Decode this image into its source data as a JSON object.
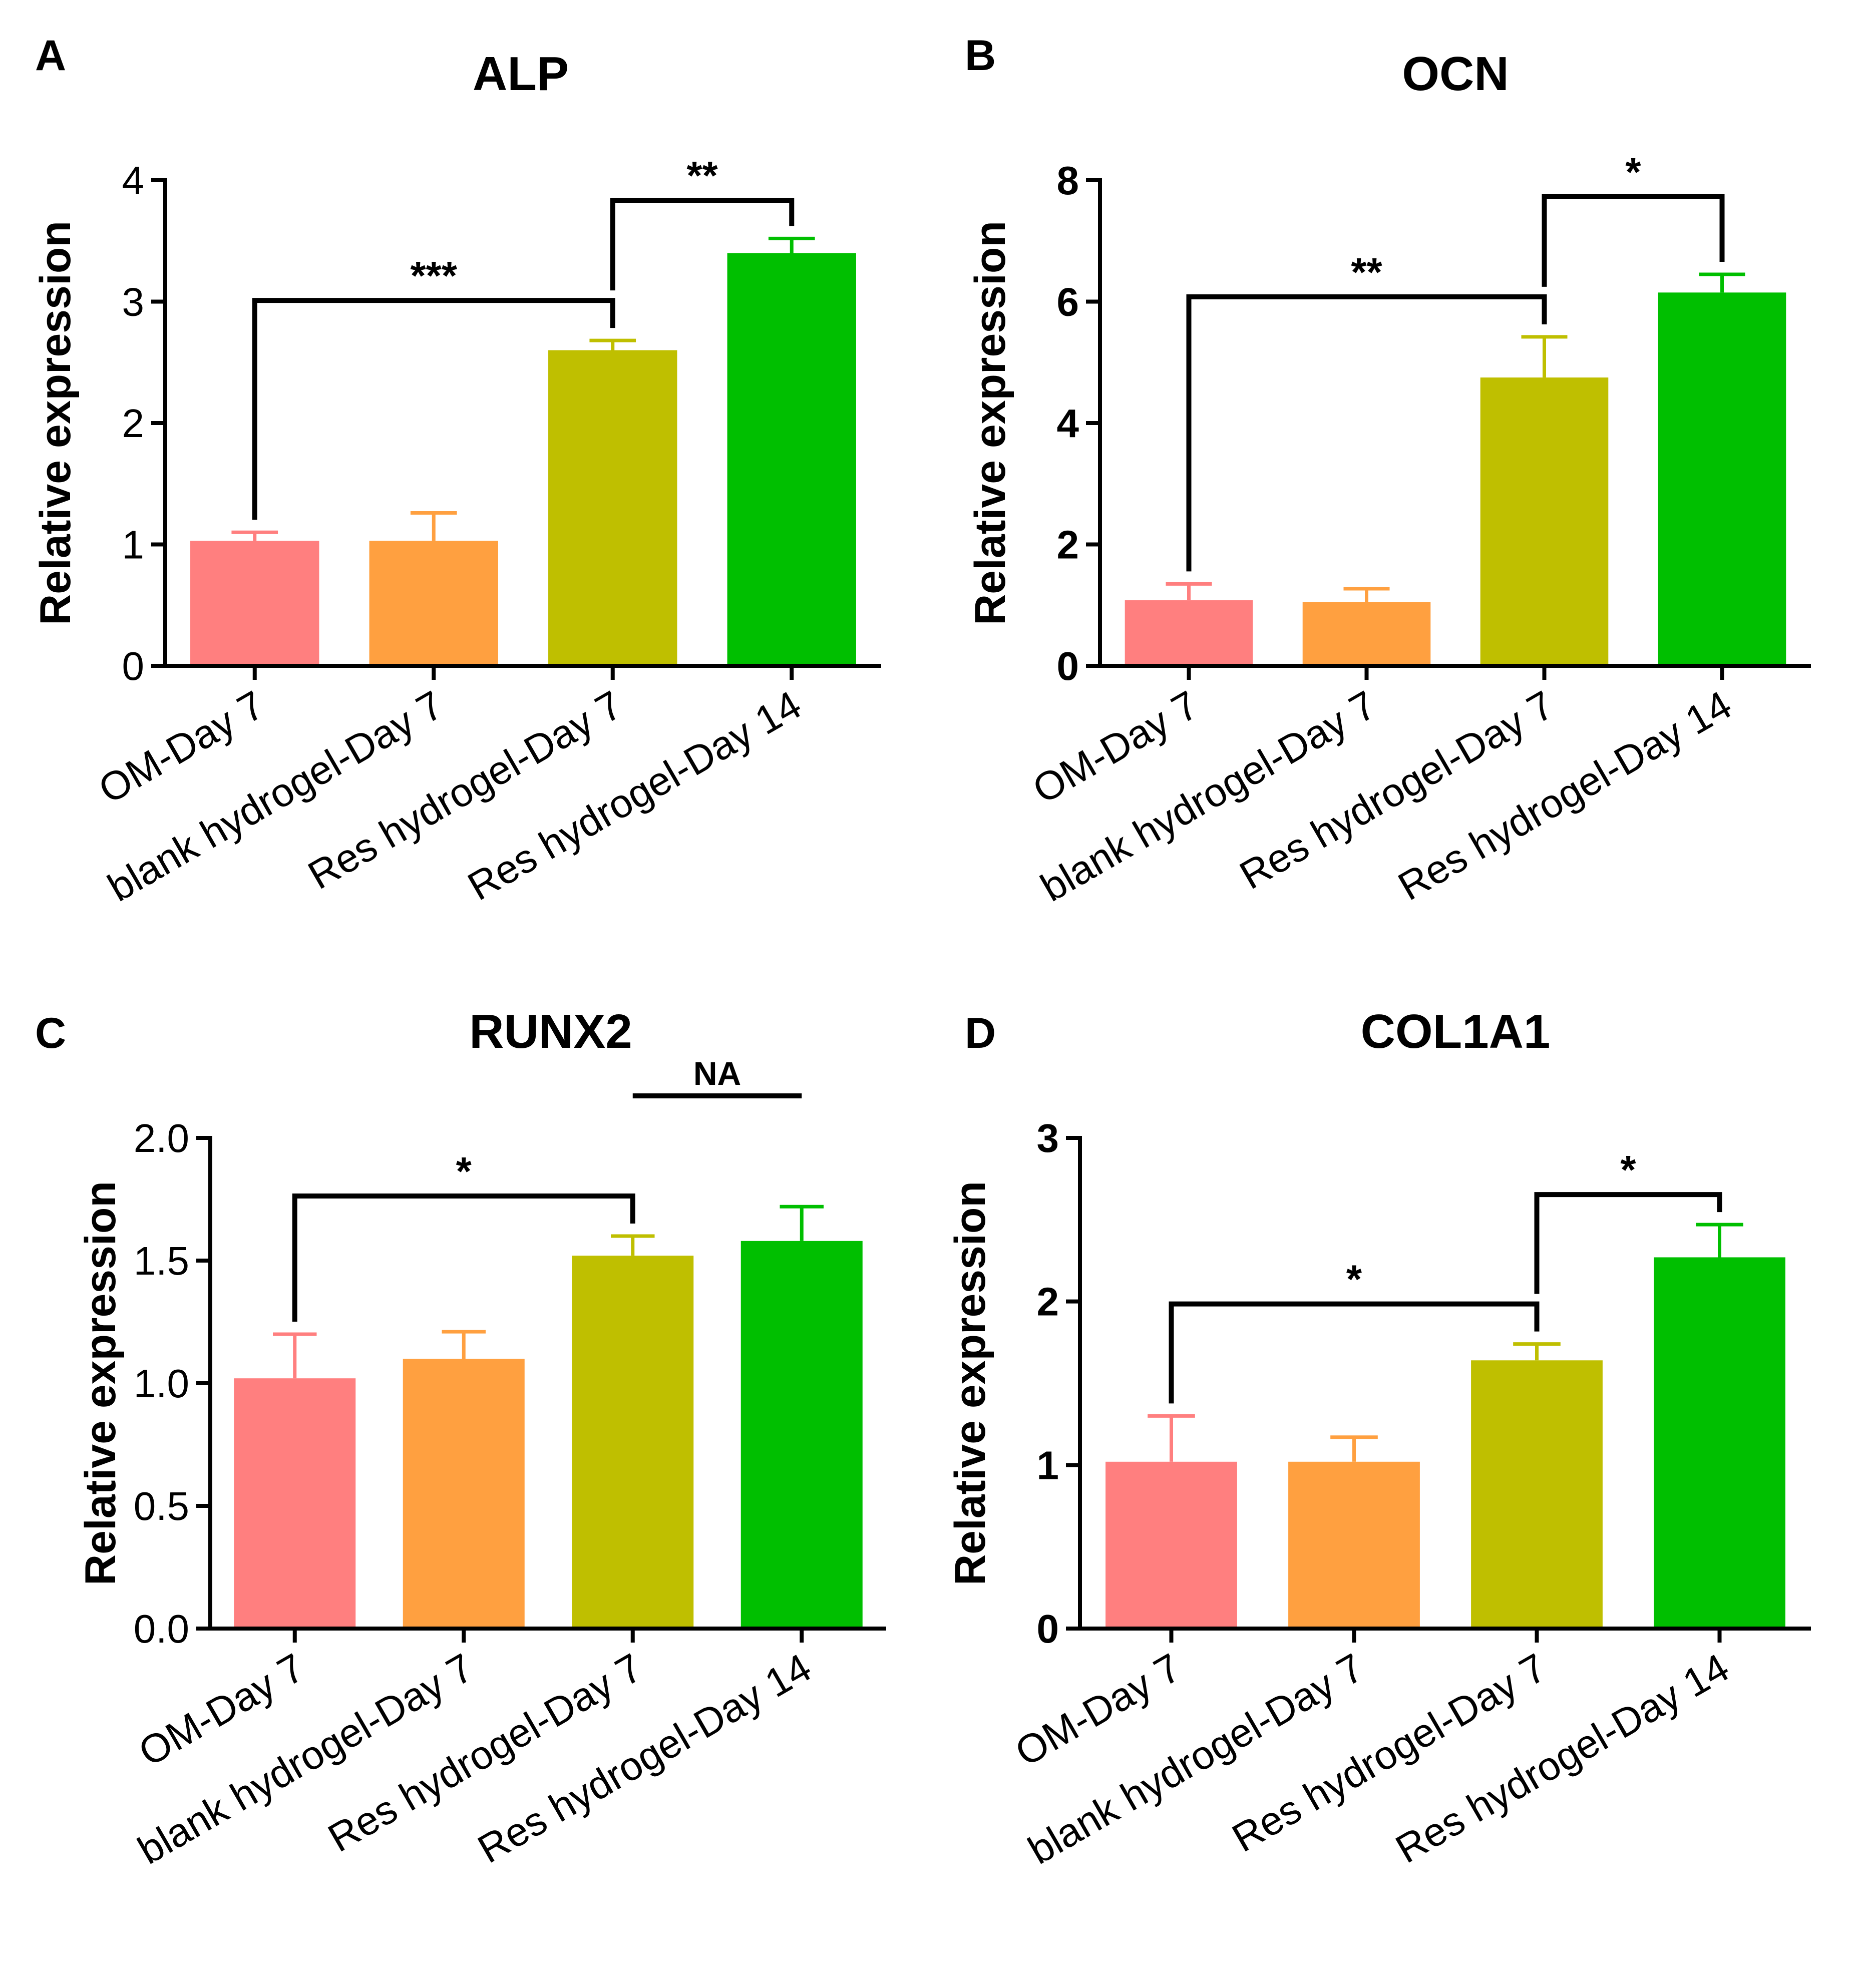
{
  "chart_data": [
    {
      "panel_label": "A",
      "type": "bar",
      "title": "ALP",
      "ylabel": "Relative expression",
      "ylim": [
        0,
        4
      ],
      "yticks": [
        "0",
        "1",
        "2",
        "3",
        "4"
      ],
      "categories": [
        "OM-Day 7",
        "blank hydrogel-Day 7",
        "Res hydrogel-Day 7",
        "Res hydrogel-Day 14"
      ],
      "values": [
        1.03,
        1.03,
        2.6,
        3.4
      ],
      "errors": [
        0.07,
        0.23,
        0.08,
        0.12
      ],
      "colors": [
        "#ff7f7f",
        "#ffa040",
        "#bfbf00",
        "#00bf00"
      ],
      "significance": [
        {
          "from": 0,
          "to": 2,
          "label": "***"
        },
        {
          "from": 2,
          "to": 3,
          "label": "**"
        }
      ]
    },
    {
      "panel_label": "B",
      "type": "bar",
      "title": "OCN",
      "ylabel": "Relative expression",
      "ylim": [
        0,
        8
      ],
      "yticks": [
        "0",
        "2",
        "4",
        "6",
        "8"
      ],
      "categories": [
        "OM-Day 7",
        "blank hydrogel-Day 7",
        "Res hydrogel-Day 7",
        "Res hydrogel-Day 14"
      ],
      "values": [
        1.08,
        1.05,
        4.75,
        6.15
      ],
      "errors": [
        0.27,
        0.22,
        0.67,
        0.3
      ],
      "colors": [
        "#ff7f7f",
        "#ffa040",
        "#bfbf00",
        "#00bf00"
      ],
      "significance": [
        {
          "from": 0,
          "to": 2,
          "label": "**"
        },
        {
          "from": 2,
          "to": 3,
          "label": "*"
        }
      ]
    },
    {
      "panel_label": "C",
      "type": "bar",
      "title": "RUNX2",
      "ylabel": "Relative expression",
      "ylim": [
        0,
        2.0
      ],
      "yticks": [
        "0.0",
        "0.5",
        "1.0",
        "1.5",
        "2.0"
      ],
      "categories": [
        "OM-Day 7",
        "blank hydrogel-Day 7",
        "Res hydrogel-Day 7",
        "Res hydrogel-Day 14"
      ],
      "values": [
        1.02,
        1.1,
        1.52,
        1.58
      ],
      "errors": [
        0.18,
        0.11,
        0.08,
        0.14
      ],
      "colors": [
        "#ff7f7f",
        "#ffa040",
        "#bfbf00",
        "#00bf00"
      ],
      "significance": [
        {
          "from": 0,
          "to": 2,
          "label": "*"
        },
        {
          "from": 2,
          "to": 3,
          "label": "NA",
          "flat": true
        }
      ]
    },
    {
      "panel_label": "D",
      "type": "bar",
      "title": "COL1A1",
      "ylabel": "Relative expression",
      "ylim": [
        0,
        3
      ],
      "yticks": [
        "0",
        "1",
        "2",
        "3"
      ],
      "categories": [
        "OM-Day 7",
        "blank hydrogel-Day 7",
        "Res hydrogel-Day 7",
        "Res hydrogel-Day 14"
      ],
      "values": [
        1.02,
        1.02,
        1.64,
        2.27
      ],
      "errors": [
        0.28,
        0.15,
        0.1,
        0.2
      ],
      "colors": [
        "#ff7f7f",
        "#ffa040",
        "#bfbf00",
        "#00bf00"
      ],
      "significance": [
        {
          "from": 0,
          "to": 2,
          "label": "*"
        },
        {
          "from": 2,
          "to": 3,
          "label": "*"
        }
      ]
    }
  ]
}
